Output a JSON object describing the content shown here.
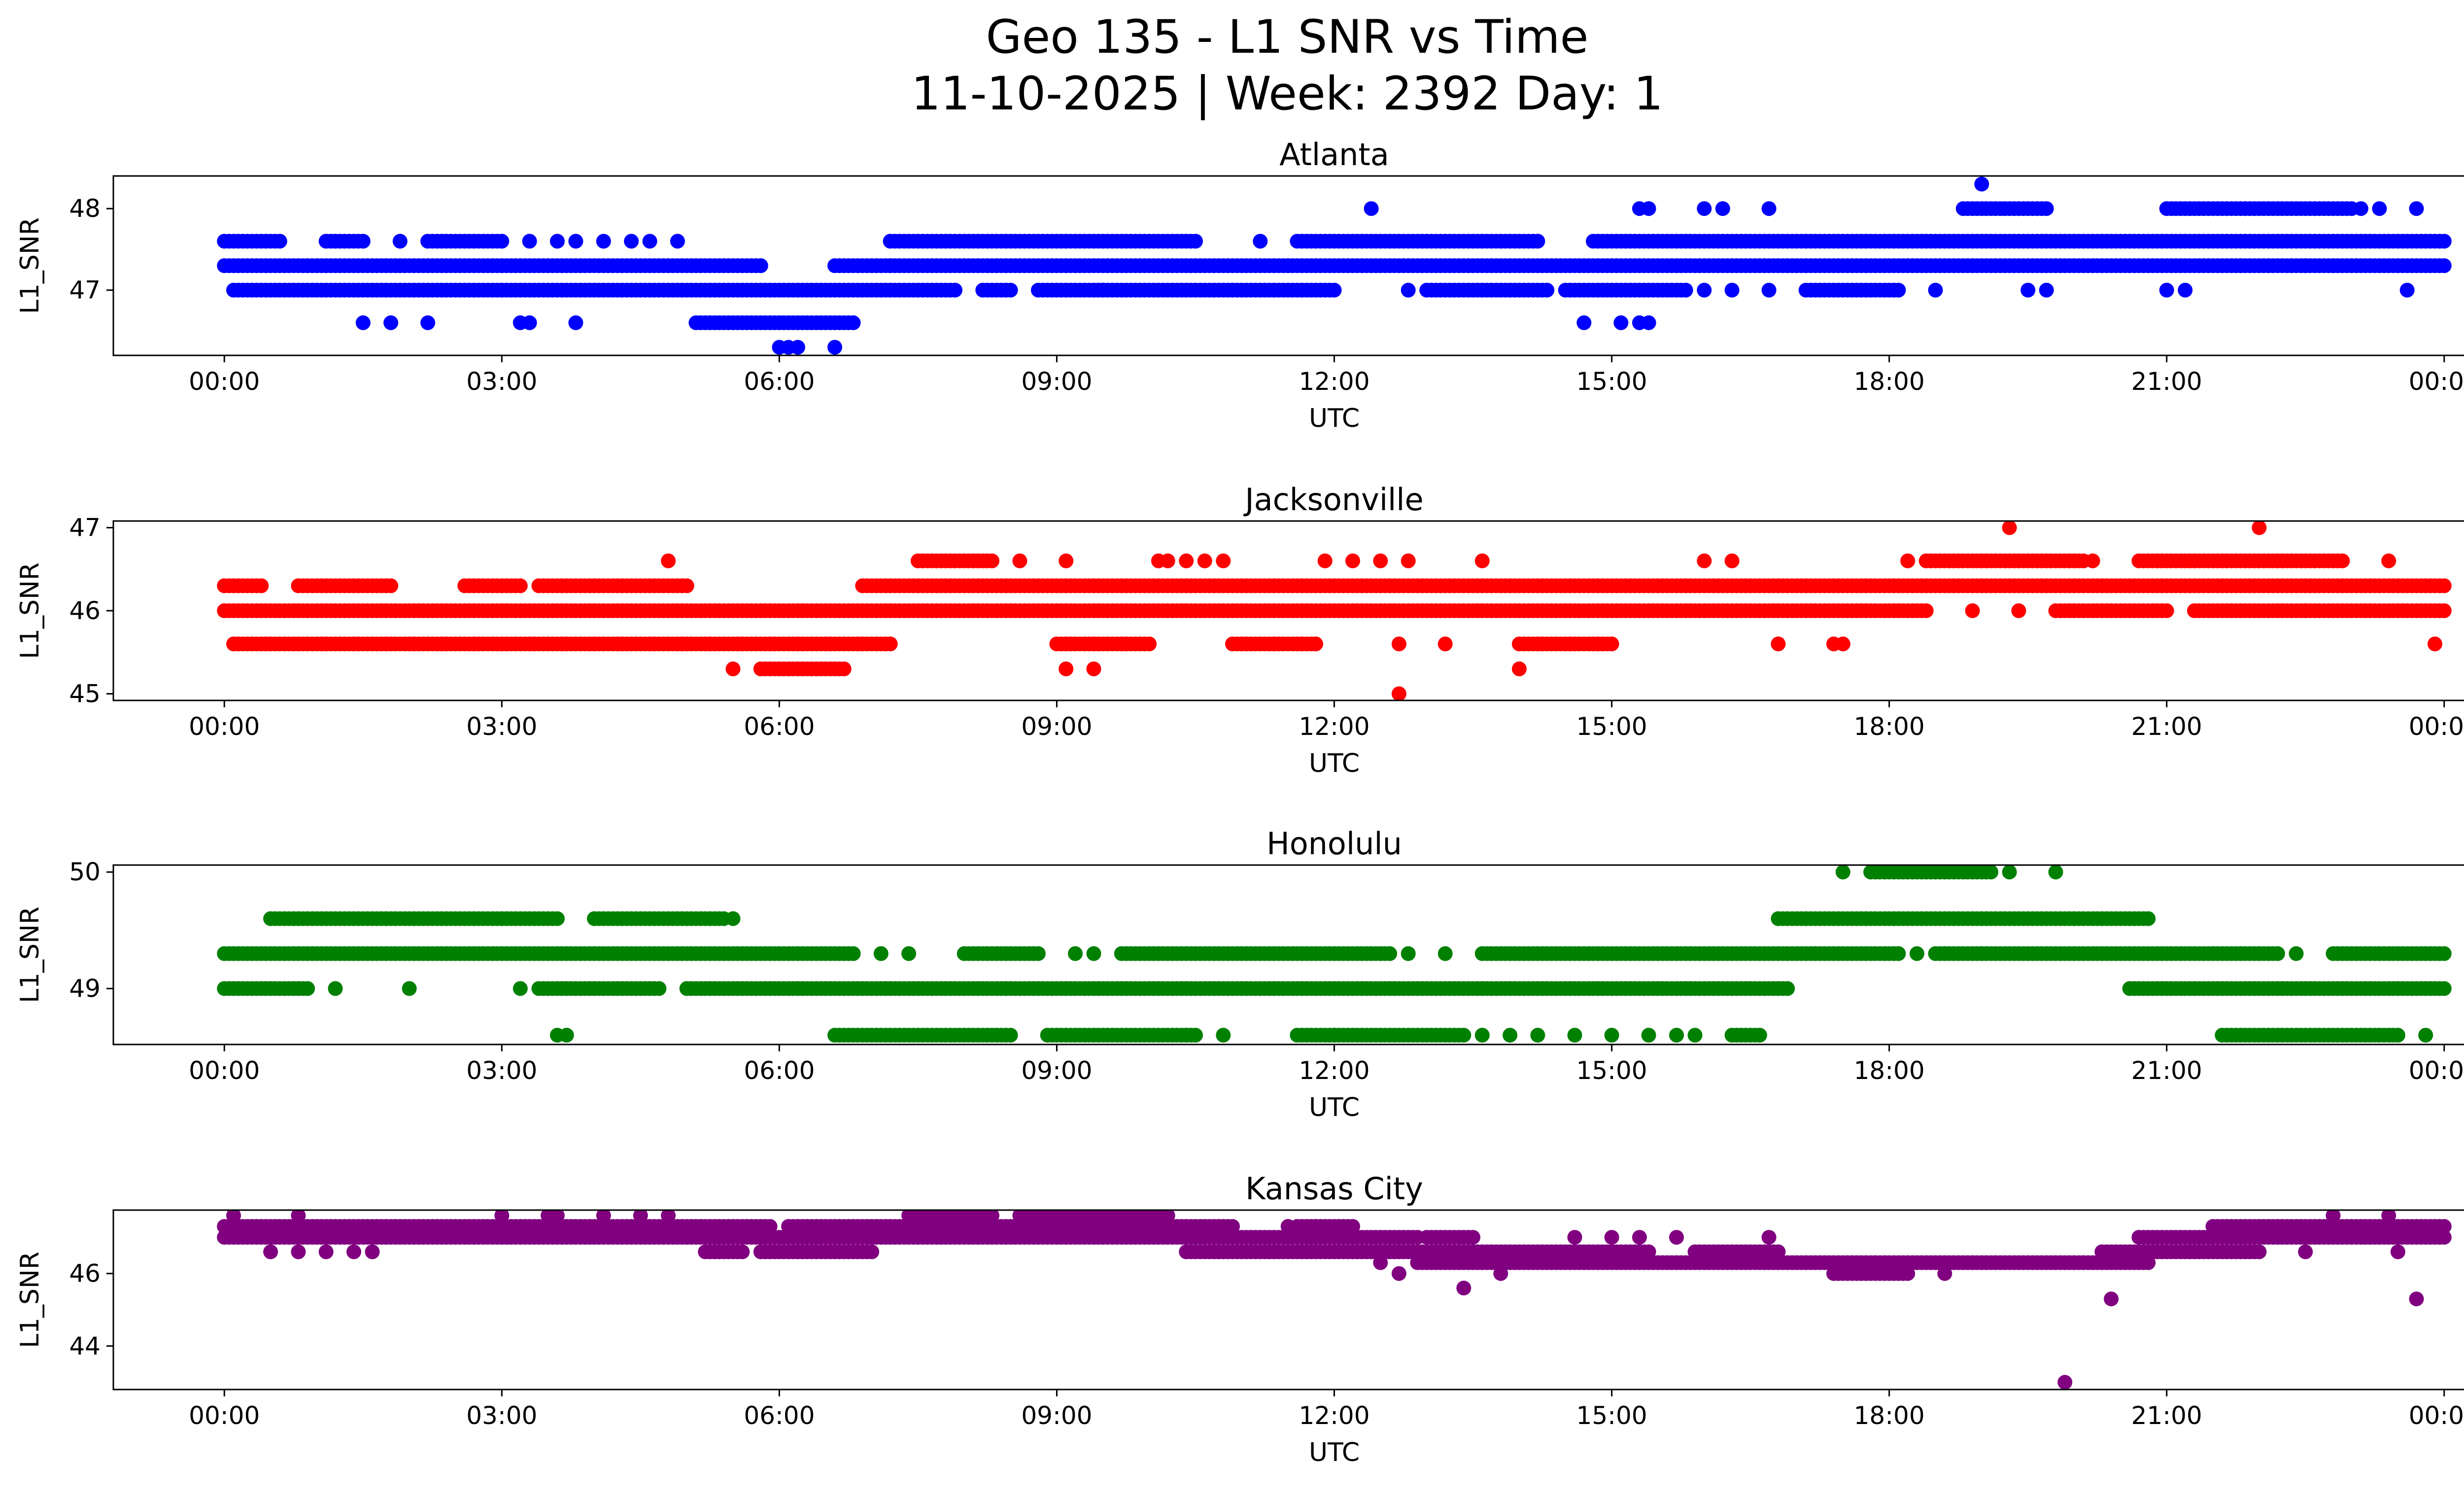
{
  "figure": {
    "title_line1": "Geo 135 - L1 SNR vs Time",
    "title_line2": "11-10-2025 | Week: 2392 Day: 1"
  },
  "chart_data": [
    {
      "type": "scatter",
      "title": "Atlanta",
      "xlabel": "UTC",
      "ylabel": "L1_SNR",
      "color": "#0000ff",
      "xlim": [
        -1.2,
        25.2
      ],
      "ylim": [
        46.2,
        48.4
      ],
      "yticks": [
        47,
        48
      ],
      "xtick_values": [
        0,
        3,
        6,
        9,
        12,
        15,
        18,
        21,
        24
      ],
      "xtick_labels": [
        "00:00",
        "03:00",
        "06:00",
        "09:00",
        "12:00",
        "15:00",
        "18:00",
        "21:00",
        "00:00"
      ],
      "levels": [
        {
          "y": 47.3,
          "ranges": [
            [
              0.0,
              5.8
            ],
            [
              6.6,
              7.2
            ],
            [
              7.2,
              11.5
            ],
            [
              11.5,
              24.0
            ]
          ]
        },
        {
          "y": 47.0,
          "ranges": [
            [
              0.1,
              7.9
            ],
            [
              8.2,
              8.5
            ],
            [
              8.8,
              9.5
            ],
            [
              9.5,
              10.9
            ],
            [
              10.9,
              12.0
            ],
            [
              13.0,
              14.3
            ],
            [
              14.5,
              15.8
            ],
            [
              17.1,
              18.1
            ]
          ]
        },
        {
          "y": 47.6,
          "ranges": [
            [
              0.0,
              0.6
            ],
            [
              1.1,
              1.5
            ],
            [
              2.2,
              3.0
            ],
            [
              7.2,
              10.5
            ],
            [
              11.6,
              14.2
            ],
            [
              14.8,
              24.0
            ]
          ]
        },
        {
          "y": 46.6,
          "ranges": [
            [
              5.1,
              6.8
            ]
          ]
        },
        {
          "y": 48.0,
          "ranges": [
            [
              18.8,
              19.7
            ],
            [
              21.0,
              23.0
            ]
          ]
        }
      ],
      "points": [
        {
          "x": 1.5,
          "y": 46.6
        },
        {
          "x": 1.8,
          "y": 46.6
        },
        {
          "x": 2.2,
          "y": 46.6
        },
        {
          "x": 3.2,
          "y": 46.6
        },
        {
          "x": 3.3,
          "y": 46.6
        },
        {
          "x": 3.8,
          "y": 46.6
        },
        {
          "x": 6.0,
          "y": 46.3
        },
        {
          "x": 6.1,
          "y": 46.3
        },
        {
          "x": 6.2,
          "y": 46.3
        },
        {
          "x": 6.6,
          "y": 46.3
        },
        {
          "x": 1.2,
          "y": 47.6
        },
        {
          "x": 1.9,
          "y": 47.6
        },
        {
          "x": 3.3,
          "y": 47.6
        },
        {
          "x": 3.6,
          "y": 47.6
        },
        {
          "x": 3.8,
          "y": 47.6
        },
        {
          "x": 4.1,
          "y": 47.6
        },
        {
          "x": 4.4,
          "y": 47.6
        },
        {
          "x": 4.6,
          "y": 47.6
        },
        {
          "x": 4.9,
          "y": 47.6
        },
        {
          "x": 11.2,
          "y": 47.6
        },
        {
          "x": 12.4,
          "y": 48.0
        },
        {
          "x": 12.8,
          "y": 47.0
        },
        {
          "x": 14.7,
          "y": 46.6
        },
        {
          "x": 15.1,
          "y": 46.6
        },
        {
          "x": 15.3,
          "y": 46.6
        },
        {
          "x": 15.4,
          "y": 46.6
        },
        {
          "x": 15.3,
          "y": 48.0
        },
        {
          "x": 15.4,
          "y": 48.0
        },
        {
          "x": 16.0,
          "y": 48.0
        },
        {
          "x": 16.2,
          "y": 48.0
        },
        {
          "x": 16.7,
          "y": 48.0
        },
        {
          "x": 16.0,
          "y": 47.0
        },
        {
          "x": 16.3,
          "y": 47.0
        },
        {
          "x": 16.7,
          "y": 47.0
        },
        {
          "x": 18.5,
          "y": 47.0
        },
        {
          "x": 19.0,
          "y": 48.3
        },
        {
          "x": 19.5,
          "y": 47.0
        },
        {
          "x": 19.7,
          "y": 47.0
        },
        {
          "x": 21.0,
          "y": 47.0
        },
        {
          "x": 21.2,
          "y": 47.0
        },
        {
          "x": 23.6,
          "y": 47.0
        },
        {
          "x": 23.7,
          "y": 48.0
        },
        {
          "x": 23.1,
          "y": 48.0
        },
        {
          "x": 23.3,
          "y": 48.0
        },
        {
          "x": 22.5,
          "y": 47.3
        },
        {
          "x": 21.8,
          "y": 47.3
        },
        {
          "x": 22.8,
          "y": 47.3
        }
      ]
    },
    {
      "type": "scatter",
      "title": "Jacksonville",
      "xlabel": "UTC",
      "ylabel": "L1_SNR",
      "color": "#ff0000",
      "xlim": [
        -1.2,
        25.2
      ],
      "ylim": [
        44.92,
        47.08
      ],
      "yticks": [
        45,
        46,
        47
      ],
      "xtick_values": [
        0,
        3,
        6,
        9,
        12,
        15,
        18,
        21,
        24
      ],
      "xtick_labels": [
        "00:00",
        "03:00",
        "06:00",
        "09:00",
        "12:00",
        "15:00",
        "18:00",
        "21:00",
        "00:00"
      ],
      "levels": [
        {
          "y": 46.0,
          "ranges": [
            [
              0.0,
              18.4
            ],
            [
              19.8,
              21.0
            ],
            [
              21.3,
              24.0
            ]
          ]
        },
        {
          "y": 46.3,
          "ranges": [
            [
              6.9,
              24.0
            ],
            [
              0.0,
              0.4
            ],
            [
              0.8,
              1.8
            ],
            [
              2.6,
              3.2
            ],
            [
              3.4,
              5.0
            ]
          ]
        },
        {
          "y": 45.6,
          "ranges": [
            [
              0.1,
              7.2
            ],
            [
              9.0,
              10.0
            ],
            [
              10.9,
              11.8
            ],
            [
              14.0,
              15.0
            ]
          ]
        },
        {
          "y": 46.6,
          "ranges": [
            [
              7.5,
              8.3
            ],
            [
              18.4,
              20.1
            ],
            [
              20.7,
              22.9
            ]
          ]
        },
        {
          "y": 45.3,
          "ranges": [
            [
              5.8,
              6.7
            ]
          ]
        }
      ],
      "points": [
        {
          "x": 4.8,
          "y": 46.6
        },
        {
          "x": 5.5,
          "y": 45.3
        },
        {
          "x": 8.6,
          "y": 46.6
        },
        {
          "x": 9.1,
          "y": 46.6
        },
        {
          "x": 9.1,
          "y": 45.3
        },
        {
          "x": 9.4,
          "y": 45.3
        },
        {
          "x": 10.1,
          "y": 46.6
        },
        {
          "x": 10.2,
          "y": 46.6
        },
        {
          "x": 10.4,
          "y": 46.6
        },
        {
          "x": 10.6,
          "y": 46.6
        },
        {
          "x": 10.8,
          "y": 46.6
        },
        {
          "x": 11.9,
          "y": 46.6
        },
        {
          "x": 12.2,
          "y": 46.6
        },
        {
          "x": 12.5,
          "y": 46.6
        },
        {
          "x": 12.8,
          "y": 46.6
        },
        {
          "x": 13.6,
          "y": 46.6
        },
        {
          "x": 12.7,
          "y": 45.6
        },
        {
          "x": 12.7,
          "y": 45.0
        },
        {
          "x": 13.2,
          "y": 45.6
        },
        {
          "x": 14.0,
          "y": 45.3
        },
        {
          "x": 16.0,
          "y": 46.6
        },
        {
          "x": 16.3,
          "y": 46.6
        },
        {
          "x": 16.8,
          "y": 45.6
        },
        {
          "x": 17.4,
          "y": 45.6
        },
        {
          "x": 17.5,
          "y": 45.6
        },
        {
          "x": 18.2,
          "y": 46.6
        },
        {
          "x": 19.3,
          "y": 47.0
        },
        {
          "x": 22.0,
          "y": 47.0
        },
        {
          "x": 21.7,
          "y": 46.0
        },
        {
          "x": 22.5,
          "y": 46.0
        },
        {
          "x": 23.4,
          "y": 46.6
        },
        {
          "x": 23.9,
          "y": 45.6
        },
        {
          "x": 18.9,
          "y": 46.0
        },
        {
          "x": 19.4,
          "y": 46.0
        },
        {
          "x": 20.2,
          "y": 46.6
        }
      ]
    },
    {
      "type": "scatter",
      "title": "Honolulu",
      "xlabel": "UTC",
      "ylabel": "L1_SNR",
      "color": "#008000",
      "xlim": [
        -1.2,
        25.2
      ],
      "ylim": [
        48.52,
        50.06
      ],
      "yticks": [
        49,
        50
      ],
      "xtick_values": [
        0,
        3,
        6,
        9,
        12,
        15,
        18,
        21,
        24
      ],
      "xtick_labels": [
        "00:00",
        "03:00",
        "06:00",
        "09:00",
        "12:00",
        "15:00",
        "18:00",
        "21:00",
        "00:00"
      ],
      "levels": [
        {
          "y": 49.3,
          "ranges": [
            [
              0.0,
              6.8
            ],
            [
              8.0,
              8.8
            ],
            [
              9.7,
              12.6
            ],
            [
              13.6,
              17.2
            ],
            [
              17.2,
              18.1
            ],
            [
              18.5,
              21.5
            ],
            [
              21.5,
              22.2
            ],
            [
              22.8,
              24.0
            ]
          ]
        },
        {
          "y": 49.0,
          "ranges": [
            [
              0.0,
              0.9
            ],
            [
              3.4,
              4.7
            ],
            [
              5.0,
              16.9
            ],
            [
              20.6,
              24.0
            ]
          ]
        },
        {
          "y": 49.6,
          "ranges": [
            [
              0.5,
              3.6
            ],
            [
              4.0,
              5.4
            ],
            [
              16.8,
              20.8
            ]
          ]
        },
        {
          "y": 48.6,
          "ranges": [
            [
              6.6,
              8.5
            ],
            [
              8.9,
              10.5
            ],
            [
              11.6,
              13.4
            ],
            [
              16.3,
              16.6
            ],
            [
              21.6,
              23.5
            ]
          ]
        },
        {
          "y": 50.0,
          "ranges": [
            [
              17.8,
              19.1
            ]
          ]
        }
      ],
      "points": [
        {
          "x": 1.2,
          "y": 49.0
        },
        {
          "x": 2.0,
          "y": 49.0
        },
        {
          "x": 3.2,
          "y": 49.0
        },
        {
          "x": 3.6,
          "y": 48.6
        },
        {
          "x": 3.7,
          "y": 48.6
        },
        {
          "x": 5.5,
          "y": 49.6
        },
        {
          "x": 7.1,
          "y": 49.3
        },
        {
          "x": 7.4,
          "y": 49.3
        },
        {
          "x": 9.2,
          "y": 49.3
        },
        {
          "x": 9.4,
          "y": 49.3
        },
        {
          "x": 10.4,
          "y": 48.6
        },
        {
          "x": 10.8,
          "y": 48.6
        },
        {
          "x": 12.0,
          "y": 48.6
        },
        {
          "x": 12.8,
          "y": 49.3
        },
        {
          "x": 13.2,
          "y": 49.3
        },
        {
          "x": 13.6,
          "y": 48.6
        },
        {
          "x": 13.9,
          "y": 48.6
        },
        {
          "x": 14.2,
          "y": 48.6
        },
        {
          "x": 14.6,
          "y": 48.6
        },
        {
          "x": 15.0,
          "y": 48.6
        },
        {
          "x": 15.4,
          "y": 48.6
        },
        {
          "x": 15.7,
          "y": 48.6
        },
        {
          "x": 15.9,
          "y": 48.6
        },
        {
          "x": 17.5,
          "y": 50.0
        },
        {
          "x": 19.3,
          "y": 50.0
        },
        {
          "x": 19.8,
          "y": 50.0
        },
        {
          "x": 18.3,
          "y": 49.3
        },
        {
          "x": 18.6,
          "y": 49.3
        },
        {
          "x": 19.0,
          "y": 49.3
        },
        {
          "x": 21.8,
          "y": 49.3
        },
        {
          "x": 22.0,
          "y": 49.3
        },
        {
          "x": 22.4,
          "y": 49.3
        },
        {
          "x": 23.8,
          "y": 48.6
        }
      ]
    },
    {
      "type": "scatter",
      "title": "Kansas City",
      "xlabel": "UTC",
      "ylabel": "L1_SNR",
      "color": "#800080",
      "xlim": [
        -1.2,
        25.2
      ],
      "ylim": [
        42.8,
        47.75
      ],
      "yticks": [
        44,
        46
      ],
      "xtick_values": [
        0,
        3,
        6,
        9,
        12,
        15,
        18,
        21,
        24
      ],
      "xtick_labels": [
        "00:00",
        "03:00",
        "06:00",
        "09:00",
        "12:00",
        "15:00",
        "18:00",
        "21:00",
        "00:00"
      ],
      "levels": [
        {
          "y": 47.0,
          "ranges": [
            [
              0.0,
              12.9
            ],
            [
              13.0,
              13.5
            ],
            [
              20.7,
              24.0
            ]
          ]
        },
        {
          "y": 47.3,
          "ranges": [
            [
              0.0,
              5.9
            ],
            [
              6.1,
              10.9
            ],
            [
              11.6,
              12.2
            ],
            [
              21.5,
              24.0
            ]
          ]
        },
        {
          "y": 46.6,
          "ranges": [
            [
              5.2,
              5.6
            ],
            [
              5.8,
              7.0
            ],
            [
              10.4,
              15.4
            ],
            [
              15.9,
              16.8
            ],
            [
              20.3,
              22.0
            ]
          ]
        },
        {
          "y": 46.3,
          "ranges": [
            [
              12.9,
              20.8
            ]
          ]
        },
        {
          "y": 46.0,
          "ranges": [
            [
              17.4,
              18.2
            ]
          ]
        },
        {
          "y": 47.6,
          "ranges": [
            [
              7.4,
              8.3
            ],
            [
              8.6,
              10.2
            ]
          ]
        }
      ],
      "points": [
        {
          "x": 0.1,
          "y": 47.6
        },
        {
          "x": 0.8,
          "y": 47.6
        },
        {
          "x": 0.5,
          "y": 46.6
        },
        {
          "x": 0.8,
          "y": 46.6
        },
        {
          "x": 1.1,
          "y": 46.6
        },
        {
          "x": 1.4,
          "y": 46.6
        },
        {
          "x": 1.6,
          "y": 46.6
        },
        {
          "x": 3.0,
          "y": 47.6
        },
        {
          "x": 3.5,
          "y": 47.6
        },
        {
          "x": 3.6,
          "y": 47.6
        },
        {
          "x": 4.1,
          "y": 47.6
        },
        {
          "x": 4.5,
          "y": 47.6
        },
        {
          "x": 4.8,
          "y": 47.6
        },
        {
          "x": 12.7,
          "y": 46.0
        },
        {
          "x": 13.4,
          "y": 45.6
        },
        {
          "x": 12.5,
          "y": 46.3
        },
        {
          "x": 13.8,
          "y": 46.0
        },
        {
          "x": 18.6,
          "y": 46.0
        },
        {
          "x": 19.9,
          "y": 43.0
        },
        {
          "x": 20.4,
          "y": 45.3
        },
        {
          "x": 22.5,
          "y": 46.6
        },
        {
          "x": 22.8,
          "y": 47.6
        },
        {
          "x": 23.4,
          "y": 47.6
        },
        {
          "x": 23.5,
          "y": 46.6
        },
        {
          "x": 23.7,
          "y": 45.3
        },
        {
          "x": 11.5,
          "y": 47.3
        },
        {
          "x": 11.8,
          "y": 47.3
        },
        {
          "x": 14.6,
          "y": 47.0
        },
        {
          "x": 15.0,
          "y": 47.0
        },
        {
          "x": 15.3,
          "y": 47.0
        },
        {
          "x": 15.7,
          "y": 47.0
        },
        {
          "x": 16.7,
          "y": 47.0
        }
      ]
    }
  ]
}
